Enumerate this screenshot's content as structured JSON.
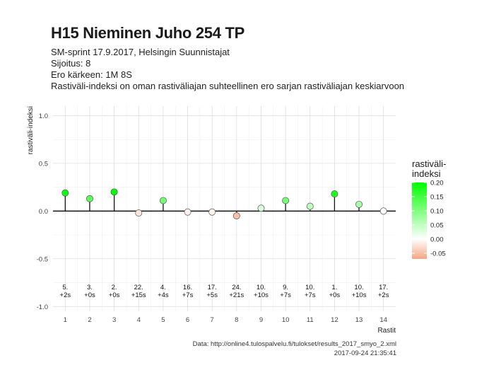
{
  "header": {
    "title": "H15 Nieminen Juho 254 TP",
    "subtitle_lines": [
      "SM-sprint 17.9.2017, Helsingin Suunnistajat",
      "Sijoitus: 8",
      "Ero kärkeen: 1M 8S",
      "Rastiväli-indeksi on oman rastiväliajan suhteellinen ero sarjan rastiväliajan keskiarvoon"
    ]
  },
  "footer": {
    "data_source": "Data: http://online4.tulospalvelu.fi/tulokset/results_2017_smyo_2.xml",
    "timestamp": "2017-09-24 21:35:41"
  },
  "legend": {
    "title": "rastiväli-\nindeksi",
    "ticks": [
      "0.20",
      "0.15",
      "0.10",
      "0.05",
      "0.00",
      "-0.05"
    ],
    "tick_values": [
      0.2,
      0.15,
      0.1,
      0.05,
      0.0,
      -0.05
    ],
    "range": [
      -0.07,
      0.2
    ],
    "high_color": "#00ff00",
    "mid_color": "#ffffff",
    "low_color": "#f4a582"
  },
  "chart_data": {
    "type": "scatter",
    "style": "lollipop",
    "xlabel": "Rastit",
    "ylabel": "rastiväli-indeksi",
    "x": [
      1,
      2,
      3,
      4,
      5,
      6,
      7,
      8,
      9,
      10,
      11,
      12,
      13,
      14
    ],
    "y": [
      0.19,
      0.13,
      0.2,
      -0.02,
      0.11,
      -0.01,
      -0.01,
      -0.05,
      0.03,
      0.11,
      0.05,
      0.18,
      0.07,
      0.0
    ],
    "annotations": [
      [
        "5.",
        "+2s"
      ],
      [
        "3.",
        "+0s"
      ],
      [
        "2.",
        "+0s"
      ],
      [
        "22.",
        "+15s"
      ],
      [
        "4.",
        "+4s"
      ],
      [
        "16.",
        "+7s"
      ],
      [
        "17.",
        "+5s"
      ],
      [
        "24.",
        "+21s"
      ],
      [
        "10.",
        "+10s"
      ],
      [
        "9.",
        "+7s"
      ],
      [
        "10.",
        "+7s"
      ],
      [
        "1.",
        "+0s"
      ],
      [
        "10.",
        "+10s"
      ],
      [
        "17.",
        "+2s"
      ]
    ],
    "xlim": [
      0.5,
      14.5
    ],
    "ylim": [
      -1.05,
      1.1
    ],
    "xticks": [
      "1",
      "2",
      "3",
      "4",
      "5",
      "6",
      "7",
      "8",
      "9",
      "10",
      "11",
      "12",
      "13",
      "14"
    ],
    "yticks": [
      "-1.0",
      "-0.5",
      "0.0",
      "0.5",
      "1.0"
    ],
    "ytick_values": [
      -1.0,
      -0.5,
      0.0,
      0.5,
      1.0
    ],
    "grid": true,
    "legend": "right"
  }
}
